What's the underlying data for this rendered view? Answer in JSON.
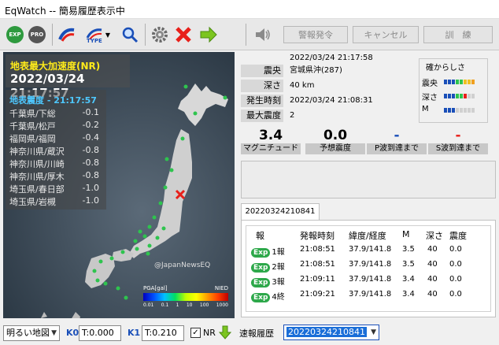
{
  "window": {
    "title": "EqWatch -- 簡易履歴表示中"
  },
  "toolbar": {
    "exp_label": "EXP",
    "pro_label": "PRO",
    "type_label": "TYPE",
    "alert_label": "警報発令",
    "cancel_label": "キャンセル",
    "drill_label": "訓　練"
  },
  "map": {
    "pga_title": "地表最大加速度(NR)",
    "pga_time": "2022/03/24 21:17:57",
    "intensity_title": "地表震度 - 21:17:57",
    "intensity_rows": [
      {
        "name": "千葉県/下総",
        "value": "-0.1"
      },
      {
        "name": "千葉県/松戸",
        "value": "-0.2"
      },
      {
        "name": "福岡県/福岡",
        "value": "-0.4"
      },
      {
        "name": "神奈川県/蔵沢",
        "value": "-0.8"
      },
      {
        "name": "神奈川県/川崎",
        "value": "-0.8"
      },
      {
        "name": "神奈川県/厚木",
        "value": "-0.8"
      },
      {
        "name": "埼玉県/春日部",
        "value": "-1.0"
      },
      {
        "name": "埼玉県/岩槻",
        "value": "-1.0"
      }
    ],
    "watermark": "@JapanNewsEQ",
    "legend_label": "PGA[gal]",
    "legend_source": "NIED",
    "legend_ticks": [
      "0.01",
      "0.1",
      "1",
      "10",
      "100",
      "1000"
    ],
    "accent_marker": "#e8201a",
    "station_color": "#2ec44e"
  },
  "info": {
    "time": "2022/03/24 21:17:58",
    "epicenter_label": "震央",
    "epicenter_value": "宮城県沖(287)",
    "depth_label": "深さ",
    "depth_value": "40 km",
    "origin_label": "発生時刻",
    "origin_value": "2022/03/24 21:08:31",
    "max_int_label": "最大震度",
    "max_int_value": "2",
    "certainty_title": "確からしさ",
    "certainty_rows": [
      "震央",
      "深さ",
      "M"
    ],
    "magnitude_value": "3.4",
    "magnitude_label": "マグニチュード",
    "predicted_value": "0.0",
    "predicted_label": "予想震度",
    "p_wave_value": "-",
    "p_wave_label": "P波到達まで",
    "s_wave_value": "-",
    "s_wave_label": "S波到達まで"
  },
  "history": {
    "tab_label": "20220324210841",
    "headers": [
      "報",
      "発報時刻",
      "緯度/経度",
      "M",
      "深さ",
      "震度"
    ],
    "badge": "Exp",
    "rows": [
      {
        "report": "1報",
        "time": "21:08:51",
        "latlon": "37.9/141.8",
        "m": "3.5",
        "depth": "40",
        "intensity": "0.0"
      },
      {
        "report": "2報",
        "time": "21:08:51",
        "latlon": "37.9/141.8",
        "m": "3.5",
        "depth": "40",
        "intensity": "0.0"
      },
      {
        "report": "3報",
        "time": "21:09:11",
        "latlon": "37.9/141.8",
        "m": "3.4",
        "depth": "40",
        "intensity": "0.0"
      },
      {
        "report": "4終",
        "time": "21:09:21",
        "latlon": "37.9/141.8",
        "m": "3.4",
        "depth": "40",
        "intensity": "0.0"
      }
    ]
  },
  "bottom": {
    "map_style": "明るい地図",
    "k0_label": "K0",
    "k0_value": "T:0.000",
    "k1_label": "K1",
    "k1_value": "T:0.210",
    "nr_label": "NR",
    "history_label": "速報履歴",
    "history_value": "20220324210841"
  }
}
